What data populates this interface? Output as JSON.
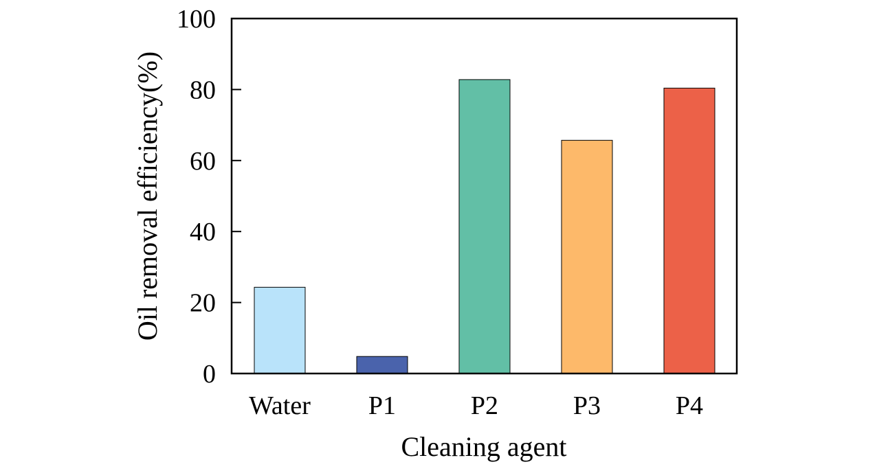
{
  "chart_data": {
    "type": "bar",
    "title": "",
    "xlabel": "Cleaning agent",
    "ylabel": "Oil removal efficiency(%)",
    "categories": [
      "Water",
      "P1",
      "P2",
      "P3",
      "P4"
    ],
    "values": [
      24.3,
      4.8,
      82.8,
      65.7,
      80.4
    ],
    "colors": [
      "#b9e3fa",
      "#4a63ac",
      "#62bfa6",
      "#fdb96a",
      "#ec6148"
    ],
    "ylim": [
      0,
      100
    ],
    "yticks": [
      0,
      20,
      40,
      60,
      80,
      100
    ],
    "grid": false,
    "legend": "none"
  }
}
